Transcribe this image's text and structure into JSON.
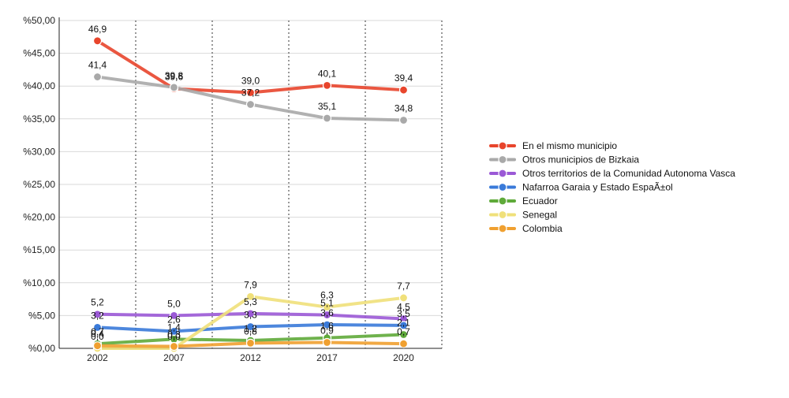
{
  "chart_data": {
    "type": "line",
    "title": "",
    "xlabel": "",
    "ylabel": "",
    "categories": [
      "2002",
      "2007",
      "2012",
      "2017",
      "2020"
    ],
    "ylim": [
      0,
      50
    ],
    "y_ticks": [
      "%0,00",
      "%5,00",
      "%10,00",
      "%15,00",
      "%20,00",
      "%25,00",
      "%30,00",
      "%35,00",
      "%40,00",
      "%45,00",
      "%50,00"
    ],
    "grid": "horizontal solid lines, vertical dotted lines",
    "legend_position": "right",
    "series": [
      {
        "name": "En el mismo municipio",
        "color": "#e8452c",
        "values": [
          46.9,
          39.6,
          39.0,
          40.1,
          39.4
        ],
        "labels": [
          "46,9",
          "39,6",
          "39,0",
          "40,1",
          "39,4"
        ]
      },
      {
        "name": "Otros municipios de Bizkaia",
        "color": "#a9a9a9",
        "values": [
          41.4,
          39.8,
          37.2,
          35.1,
          34.8
        ],
        "labels": [
          "41,4",
          "39,8",
          "37,2",
          "35,1",
          "34,8"
        ]
      },
      {
        "name": "Otros territorios de la Comunidad Autonoma Vasca",
        "color": "#9b59d6",
        "values": [
          5.2,
          5.0,
          5.3,
          5.1,
          4.5
        ],
        "labels": [
          "5,2",
          "5,0",
          "5,3",
          "5,1",
          "4,5"
        ]
      },
      {
        "name": "Nafarroa Garaia y Estado EspaÃ±ol",
        "color": "#3a7ad9",
        "values": [
          3.2,
          2.6,
          3.3,
          3.6,
          3.5
        ],
        "labels": [
          "3,2",
          "2,6",
          "3,3",
          "3,6",
          "3,5"
        ]
      },
      {
        "name": "Ecuador",
        "color": "#5faa3a",
        "values": [
          0.7,
          1.4,
          1.2,
          1.6,
          2.1
        ],
        "labels": [
          "0,7",
          "1,4",
          "1,2",
          "1,6",
          "2,1"
        ]
      },
      {
        "name": "Senegal",
        "color": "#f0e07a",
        "values": [
          0.0,
          0.0,
          7.9,
          6.3,
          7.7
        ],
        "labels": [
          "0,0",
          "0,0",
          "7,9",
          "6,3",
          "7,7"
        ]
      },
      {
        "name": "Colombia",
        "color": "#f0a030",
        "values": [
          0.4,
          0.3,
          0.8,
          0.9,
          0.7
        ],
        "labels": [
          "0,4",
          "0,3",
          "0,8",
          "0,9",
          "0,7"
        ]
      }
    ]
  }
}
